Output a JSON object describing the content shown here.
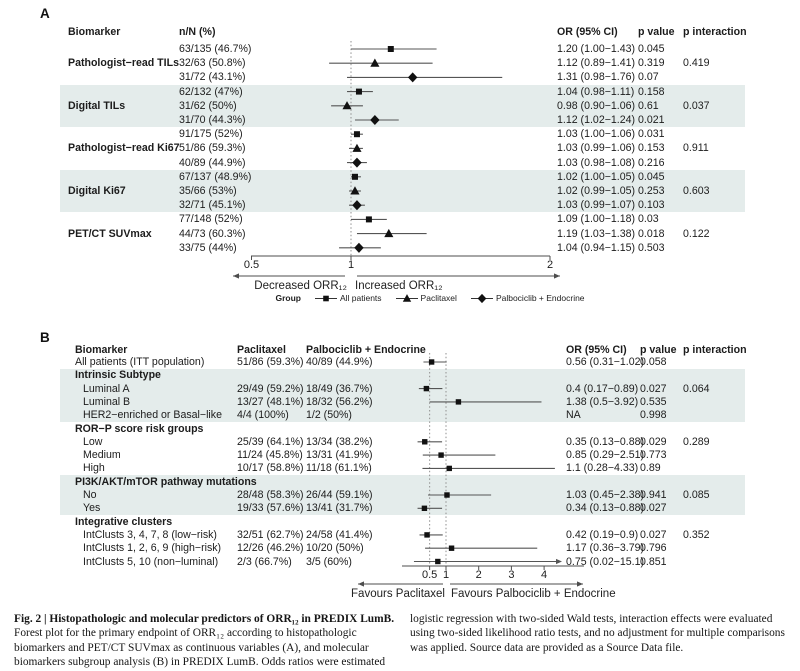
{
  "chart_data": [
    {
      "type": "forest",
      "panel": "A",
      "columns": [
        "Biomarker",
        "n/N (%)",
        "OR (95% CI)",
        "p value",
        "p interaction"
      ],
      "axis": {
        "scale": "linear",
        "min": 0.5,
        "max": 2,
        "tick_values": [
          0.5,
          1,
          2
        ],
        "tick_labels": [
          "0.5",
          "1",
          "2"
        ],
        "ref_lines": [
          1
        ],
        "left_arrow_label": "Decreased ORR₁₂",
        "right_arrow_label": "Increased ORR₁₂"
      },
      "legend": {
        "title": "Group",
        "items": [
          {
            "marker": "square",
            "label": "All patients"
          },
          {
            "marker": "triangle",
            "label": "Paclitaxel"
          },
          {
            "marker": "diamond",
            "label": "Palbociclib + Endocrine"
          }
        ]
      },
      "rows": [
        {
          "group": "",
          "nN": "63/135 (46.7%)",
          "marker": "square",
          "est": 1.2,
          "lo": 1.0,
          "hi": 1.43,
          "or_text": "1.20 (1.00−1.43)",
          "p": "0.045",
          "p_int": "",
          "shaded": false
        },
        {
          "group": "Pathologist−read TILs",
          "nN": "32/63 (50.8%)",
          "marker": "triangle",
          "est": 1.12,
          "lo": 0.89,
          "hi": 1.41,
          "or_text": "1.12 (0.89−1.41)",
          "p": "0.319",
          "p_int": "0.419",
          "shaded": false
        },
        {
          "group": "",
          "nN": "31/72 (43.1%)",
          "marker": "diamond",
          "est": 1.31,
          "lo": 0.98,
          "hi": 1.76,
          "or_text": "1.31 (0.98−1.76)",
          "p": "0.07",
          "p_int": "",
          "shaded": false
        },
        {
          "group": "",
          "nN": "62/132 (47%)",
          "marker": "square",
          "est": 1.04,
          "lo": 0.98,
          "hi": 1.11,
          "or_text": "1.04 (0.98−1.11)",
          "p": "0.158",
          "p_int": "",
          "shaded": true
        },
        {
          "group": "Digital TILs",
          "nN": "31/62 (50%)",
          "marker": "triangle",
          "est": 0.98,
          "lo": 0.9,
          "hi": 1.06,
          "or_text": "0.98 (0.90−1.06)",
          "p": "0.61",
          "p_int": "0.037",
          "shaded": true
        },
        {
          "group": "",
          "nN": "31/70 (44.3%)",
          "marker": "diamond",
          "est": 1.12,
          "lo": 1.02,
          "hi": 1.24,
          "or_text": "1.12 (1.02−1.24)",
          "p": "0.021",
          "p_int": "",
          "shaded": true
        },
        {
          "group": "",
          "nN": "91/175 (52%)",
          "marker": "square",
          "est": 1.03,
          "lo": 1.0,
          "hi": 1.06,
          "or_text": "1.03 (1.00−1.06)",
          "p": "0.031",
          "p_int": "",
          "shaded": false
        },
        {
          "group": "Pathologist−read Ki67",
          "nN": "51/86 (59.3%)",
          "marker": "triangle",
          "est": 1.03,
          "lo": 0.99,
          "hi": 1.06,
          "or_text": "1.03 (0.99−1.06)",
          "p": "0.153",
          "p_int": "0.911",
          "shaded": false
        },
        {
          "group": "",
          "nN": "40/89 (44.9%)",
          "marker": "diamond",
          "est": 1.03,
          "lo": 0.98,
          "hi": 1.08,
          "or_text": "1.03 (0.98−1.08)",
          "p": "0.216",
          "p_int": "",
          "shaded": false
        },
        {
          "group": "",
          "nN": "67/137 (48.9%)",
          "marker": "square",
          "est": 1.02,
          "lo": 1.0,
          "hi": 1.05,
          "or_text": "1.02 (1.00−1.05)",
          "p": "0.045",
          "p_int": "",
          "shaded": true
        },
        {
          "group": "Digital Ki67",
          "nN": "35/66 (53%)",
          "marker": "triangle",
          "est": 1.02,
          "lo": 0.99,
          "hi": 1.05,
          "or_text": "1.02 (0.99−1.05)",
          "p": "0.253",
          "p_int": "0.603",
          "shaded": true
        },
        {
          "group": "",
          "nN": "32/71 (45.1%)",
          "marker": "diamond",
          "est": 1.03,
          "lo": 0.99,
          "hi": 1.07,
          "or_text": "1.03 (0.99−1.07)",
          "p": "0.103",
          "p_int": "",
          "shaded": true
        },
        {
          "group": "",
          "nN": "77/148 (52%)",
          "marker": "square",
          "est": 1.09,
          "lo": 1.0,
          "hi": 1.18,
          "or_text": "1.09 (1.00−1.18)",
          "p": "0.03",
          "p_int": "",
          "shaded": false
        },
        {
          "group": "PET/CT SUVmax",
          "nN": "44/73 (60.3%)",
          "marker": "triangle",
          "est": 1.19,
          "lo": 1.03,
          "hi": 1.38,
          "or_text": "1.19 (1.03−1.38)",
          "p": "0.018",
          "p_int": "0.122",
          "shaded": false
        },
        {
          "group": "",
          "nN": "33/75 (44%)",
          "marker": "diamond",
          "est": 1.04,
          "lo": 0.94,
          "hi": 1.15,
          "or_text": "1.04 (0.94−1.15)",
          "p": "0.503",
          "p_int": "",
          "shaded": false
        }
      ]
    },
    {
      "type": "forest",
      "panel": "B",
      "columns": [
        "Biomarker",
        "Paclitaxel",
        "Palbociclib + Endocrine",
        "OR (95% CI)",
        "p value",
        "p interaction"
      ],
      "axis": {
        "scale": "linear",
        "min": 0.5,
        "max": 4,
        "tick_values": [
          0.5,
          1,
          2,
          3,
          4
        ],
        "tick_labels": [
          "0.5",
          "1",
          "2",
          "3",
          "4"
        ],
        "ref_lines": [
          0.5,
          1
        ],
        "left_arrow_label": "Favours Paclitaxel",
        "right_arrow_label": "Favours Palbociclib + Endocrine"
      },
      "rows": [
        {
          "label": "All patients (ITT population)",
          "header": false,
          "indent": false,
          "pac": "51/86 (59.3%)",
          "palbo": "40/89 (44.9%)",
          "marker": "square",
          "est": 0.56,
          "lo": 0.31,
          "hi": 1.02,
          "or_text": "0.56 (0.31−1.02)",
          "p": "0.058",
          "p_int": "",
          "shaded": false
        },
        {
          "label": "Intrinsic Subtype",
          "header": true,
          "indent": false,
          "pac": "",
          "palbo": "",
          "or_text": "",
          "p": "",
          "p_int": "",
          "shaded": true
        },
        {
          "label": "Luminal A",
          "header": false,
          "indent": true,
          "pac": "29/49 (59.2%)",
          "palbo": "18/49 (36.7%)",
          "marker": "square",
          "est": 0.4,
          "lo": 0.17,
          "hi": 0.89,
          "or_text": "0.4 (0.17−0.89)",
          "p": "0.027",
          "p_int": "0.064",
          "shaded": true
        },
        {
          "label": "Luminal B",
          "header": false,
          "indent": true,
          "pac": "13/27 (48.1%)",
          "palbo": "18/32 (56.2%)",
          "marker": "square",
          "est": 1.38,
          "lo": 0.5,
          "hi": 3.92,
          "or_text": "1.38 (0.5−3.92)",
          "p": "0.535",
          "p_int": "",
          "shaded": true
        },
        {
          "label": "HER2−enriched or Basal−like",
          "header": false,
          "indent": true,
          "pac": "4/4 (100%)",
          "palbo": "1/2 (50%)",
          "or_text": "NA",
          "p": "0.998",
          "p_int": "",
          "shaded": true
        },
        {
          "label": "ROR−P score risk groups",
          "header": true,
          "indent": false,
          "pac": "",
          "palbo": "",
          "or_text": "",
          "p": "",
          "p_int": "",
          "shaded": false
        },
        {
          "label": "Low",
          "header": false,
          "indent": true,
          "pac": "25/39 (64.1%)",
          "palbo": "13/34 (38.2%)",
          "marker": "square",
          "est": 0.35,
          "lo": 0.13,
          "hi": 0.88,
          "or_text": "0.35 (0.13−0.88)",
          "p": "0.029",
          "p_int": "0.289",
          "shaded": false
        },
        {
          "label": "Medium",
          "header": false,
          "indent": true,
          "pac": "11/24 (45.8%)",
          "palbo": "13/31 (41.9%)",
          "marker": "square",
          "est": 0.85,
          "lo": 0.29,
          "hi": 2.51,
          "or_text": "0.85 (0.29−2.51)",
          "p": "0.773",
          "p_int": "",
          "shaded": false
        },
        {
          "label": "High",
          "header": false,
          "indent": true,
          "pac": "10/17 (58.8%)",
          "palbo": "11/18 (61.1%)",
          "marker": "square",
          "est": 1.1,
          "lo": 0.28,
          "hi": 4.33,
          "or_text": "1.1 (0.28−4.33)",
          "p": "0.89",
          "p_int": "",
          "shaded": false
        },
        {
          "label": "PI3K/AKT/mTOR pathway mutations",
          "header": true,
          "indent": false,
          "pac": "",
          "palbo": "",
          "or_text": "",
          "p": "",
          "p_int": "",
          "shaded": true
        },
        {
          "label": "No",
          "header": false,
          "indent": true,
          "pac": "28/48 (58.3%)",
          "palbo": "26/44 (59.1%)",
          "marker": "square",
          "est": 1.03,
          "lo": 0.45,
          "hi": 2.38,
          "or_text": "1.03 (0.45−2.38)",
          "p": "0.941",
          "p_int": "0.085",
          "shaded": true
        },
        {
          "label": "Yes",
          "header": false,
          "indent": true,
          "pac": "19/33 (57.6%)",
          "palbo": "13/41 (31.7%)",
          "marker": "square",
          "est": 0.34,
          "lo": 0.13,
          "hi": 0.88,
          "or_text": "0.34 (0.13−0.88)",
          "p": "0.027",
          "p_int": "",
          "shaded": true
        },
        {
          "label": "Integrative clusters",
          "header": true,
          "indent": false,
          "pac": "",
          "palbo": "",
          "or_text": "",
          "p": "",
          "p_int": "",
          "shaded": false
        },
        {
          "label": "IntClusts 3, 4, 7, 8 (low−risk)",
          "header": false,
          "indent": true,
          "pac": "32/51 (62.7%)",
          "palbo": "24/58 (41.4%)",
          "marker": "square",
          "est": 0.42,
          "lo": 0.19,
          "hi": 0.9,
          "or_text": "0.42 (0.19−0.9)",
          "p": "0.027",
          "p_int": "0.352",
          "shaded": false
        },
        {
          "label": "IntClusts 1, 2, 6, 9 (high−risk)",
          "header": false,
          "indent": true,
          "pac": "12/26 (46.2%)",
          "palbo": "10/20 (50%)",
          "marker": "square",
          "est": 1.17,
          "lo": 0.36,
          "hi": 3.79,
          "or_text": "1.17 (0.36−3.79)",
          "p": "0.796",
          "p_int": "",
          "shaded": false
        },
        {
          "label": "IntClusts 5, 10 (non−luminal)",
          "header": false,
          "indent": true,
          "pac": "2/3 (66.7%)",
          "palbo": "3/5 (60%)",
          "marker": "square",
          "est": 0.75,
          "lo": 0.02,
          "hi": 15.1,
          "or_text": "0.75 (0.02−15.1)",
          "p": "0.851",
          "p_int": "",
          "shaded": false
        }
      ]
    }
  ],
  "caption": {
    "title": "Fig. 2 | Histopathologic and molecular predictors of ORR₁₂ in PREDIX LumB.",
    "left": " Forest plot for the primary endpoint of ORR₁₂ according to histopathologic biomarkers and PET/CT SUVmax as continuous variables (A), and molecular biomarkers subgroup analysis (B) in PREDIX LumB. Odds ratios were estimated using",
    "right": "logistic regression with two-sided Wald tests, interaction effects were evaluated using two-sided likelihood ratio tests, and no adjustment for multiple comparisons was applied. Source data are provided as a Source Data file."
  },
  "colors": {
    "shading": "#e4eceb",
    "marker": "#111111",
    "ci_line": "#555555",
    "ref_line": "#8f8f8f",
    "axis": "#4d4d4d"
  }
}
